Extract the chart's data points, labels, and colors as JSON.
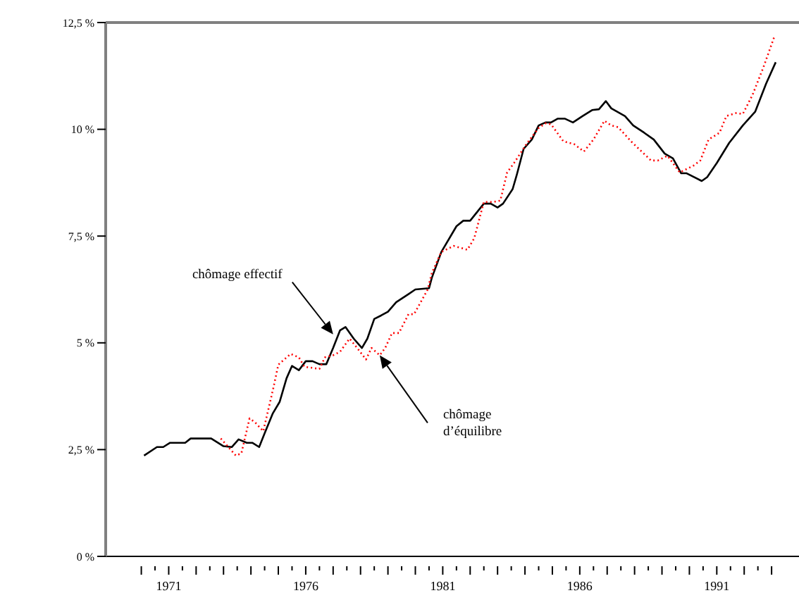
{
  "chart_data": {
    "type": "line",
    "xlim": [
      1968.7,
      1994
    ],
    "ylim": [
      0,
      12.5
    ],
    "xticks": [
      {
        "value": 1970,
        "label": null
      },
      {
        "value": 1970.5,
        "label": null
      },
      1971,
      {
        "value": 1971.5,
        "label": null
      },
      {
        "value": 1972,
        "label": null
      },
      {
        "value": 1972.5,
        "label": null
      },
      {
        "value": 1973,
        "label": null
      },
      {
        "value": 1973.5,
        "label": null
      },
      {
        "value": 1974,
        "label": null
      },
      {
        "value": 1974.5,
        "label": null
      },
      {
        "value": 1975,
        "label": null
      },
      {
        "value": 1975.5,
        "label": null
      },
      1976,
      {
        "value": 1976.5,
        "label": null
      },
      {
        "value": 1977,
        "label": null
      },
      {
        "value": 1977.5,
        "label": null
      },
      {
        "value": 1978,
        "label": null
      },
      {
        "value": 1978.5,
        "label": null
      },
      {
        "value": 1979,
        "label": null
      },
      {
        "value": 1979.5,
        "label": null
      },
      {
        "value": 1980,
        "label": null
      },
      {
        "value": 1980.5,
        "label": null
      },
      1981,
      {
        "value": 1981.5,
        "label": null
      },
      {
        "value": 1982,
        "label": null
      },
      {
        "value": 1982.5,
        "label": null
      },
      {
        "value": 1983,
        "label": null
      },
      {
        "value": 1983.5,
        "label": null
      },
      {
        "value": 1984,
        "label": null
      },
      {
        "value": 1984.5,
        "label": null
      },
      {
        "value": 1985,
        "label": null
      },
      {
        "value": 1985.5,
        "label": null
      },
      1986,
      {
        "value": 1986.5,
        "label": null
      },
      {
        "value": 1987,
        "label": null
      },
      {
        "value": 1987.5,
        "label": null
      },
      {
        "value": 1988,
        "label": null
      },
      {
        "value": 1988.5,
        "label": null
      },
      {
        "value": 1989,
        "label": null
      },
      {
        "value": 1989.5,
        "label": null
      },
      {
        "value": 1990,
        "label": null
      },
      {
        "value": 1990.5,
        "label": null
      },
      1991,
      {
        "value": 1991.5,
        "label": null
      },
      {
        "value": 1992,
        "label": null
      },
      {
        "value": 1992.5,
        "label": null
      },
      {
        "value": 1993,
        "label": null
      }
    ],
    "yticks": [
      {
        "value": 0,
        "label": "0 %"
      },
      {
        "value": 2.5,
        "label": "2,5 %"
      },
      {
        "value": 5,
        "label": "5 %"
      },
      {
        "value": 7.5,
        "label": "7,5 %"
      },
      {
        "value": 10,
        "label": "10 %"
      },
      {
        "value": 12.5,
        "label": "12,5 %"
      }
    ],
    "grid": false,
    "series": [
      {
        "color": "#000000",
        "line_style": "solid",
        "x": [
          1970.1,
          1970.57,
          1970.8,
          1971.05,
          1971.6,
          1971.8,
          1972.55,
          1973.0,
          1973.3,
          1973.55,
          1973.85,
          1974.05,
          1974.3,
          1974.5,
          1974.8,
          1975.05,
          1975.3,
          1975.5,
          1975.75,
          1976.0,
          1976.25,
          1976.5,
          1976.75,
          1977.0,
          1977.25,
          1977.45,
          1977.75,
          1978.05,
          1978.25,
          1978.5,
          1978.75,
          1979.0,
          1979.3,
          1979.75,
          1980.0,
          1980.5,
          1980.6,
          1980.95,
          1981.5,
          1981.75,
          1982.0,
          1982.5,
          1982.75,
          1983.0,
          1983.2,
          1983.55,
          1983.7,
          1983.95,
          1984.25,
          1984.5,
          1984.75,
          1984.95,
          1985.2,
          1985.45,
          1985.75,
          1986.1,
          1986.45,
          1986.7,
          1986.95,
          1987.15,
          1987.65,
          1987.95,
          1988.35,
          1988.7,
          1989.1,
          1989.4,
          1989.7,
          1989.9,
          1990.45,
          1990.65,
          1991.0,
          1991.45,
          1991.95,
          1992.4,
          1992.8,
          1993.15
        ],
        "values": [
          2.36,
          2.56,
          2.56,
          2.66,
          2.66,
          2.76,
          2.76,
          2.58,
          2.56,
          2.74,
          2.66,
          2.66,
          2.56,
          2.88,
          3.35,
          3.62,
          4.17,
          4.46,
          4.36,
          4.57,
          4.57,
          4.5,
          4.5,
          4.88,
          5.29,
          5.37,
          5.1,
          4.88,
          5.1,
          5.56,
          5.64,
          5.73,
          5.95,
          6.14,
          6.25,
          6.28,
          6.52,
          7.13,
          7.73,
          7.86,
          7.86,
          8.26,
          8.26,
          8.17,
          8.26,
          8.6,
          8.93,
          9.54,
          9.76,
          10.09,
          10.16,
          10.16,
          10.25,
          10.25,
          10.16,
          10.31,
          10.45,
          10.47,
          10.66,
          10.49,
          10.31,
          10.09,
          9.92,
          9.76,
          9.43,
          9.32,
          8.97,
          8.97,
          8.79,
          8.88,
          9.21,
          9.68,
          10.09,
          10.41,
          11.07,
          11.57
        ]
      },
      {
        "color": "#ff0000",
        "line_style": "dotted",
        "x": [
          1972.9,
          1973.15,
          1973.45,
          1973.65,
          1973.95,
          1974.15,
          1974.45,
          1974.8,
          1975.0,
          1975.45,
          1975.75,
          1975.95,
          1976.5,
          1976.7,
          1977.0,
          1977.25,
          1977.6,
          1977.9,
          1978.2,
          1978.4,
          1978.7,
          1978.9,
          1979.15,
          1979.4,
          1979.75,
          1979.95,
          1980.45,
          1980.6,
          1980.95,
          1981.4,
          1981.9,
          1982.15,
          1982.5,
          1982.85,
          1983.1,
          1983.35,
          1983.6,
          1984.05,
          1984.5,
          1984.75,
          1984.95,
          1985.4,
          1985.8,
          1986.15,
          1986.5,
          1986.9,
          1987.15,
          1987.4,
          1987.9,
          1988.6,
          1988.85,
          1989.2,
          1989.65,
          1990.15,
          1990.4,
          1990.7,
          1991.1,
          1991.35,
          1991.7,
          1991.95,
          1992.3,
          1992.7,
          1993.1
        ],
        "values": [
          2.76,
          2.58,
          2.36,
          2.41,
          3.23,
          3.14,
          2.93,
          3.89,
          4.49,
          4.74,
          4.66,
          4.44,
          4.39,
          4.66,
          4.71,
          4.79,
          5.1,
          4.86,
          4.61,
          4.88,
          4.71,
          4.88,
          5.23,
          5.23,
          5.67,
          5.67,
          6.25,
          6.63,
          7.13,
          7.27,
          7.18,
          7.45,
          8.3,
          8.3,
          8.33,
          8.99,
          9.21,
          9.65,
          10.03,
          10.14,
          10.12,
          9.72,
          9.65,
          9.48,
          9.76,
          10.2,
          10.09,
          10.05,
          9.7,
          9.27,
          9.27,
          9.38,
          8.99,
          9.15,
          9.27,
          9.76,
          9.92,
          10.31,
          10.38,
          10.36,
          10.8,
          11.45,
          12.17
        ]
      }
    ],
    "annotations": [
      {
        "text": "chômage effectif",
        "x": 1977.0,
        "y": 5.2
      },
      {
        "text": "chômage\nd’équilibre",
        "x": 1978.7,
        "y": 4.71
      }
    ]
  }
}
